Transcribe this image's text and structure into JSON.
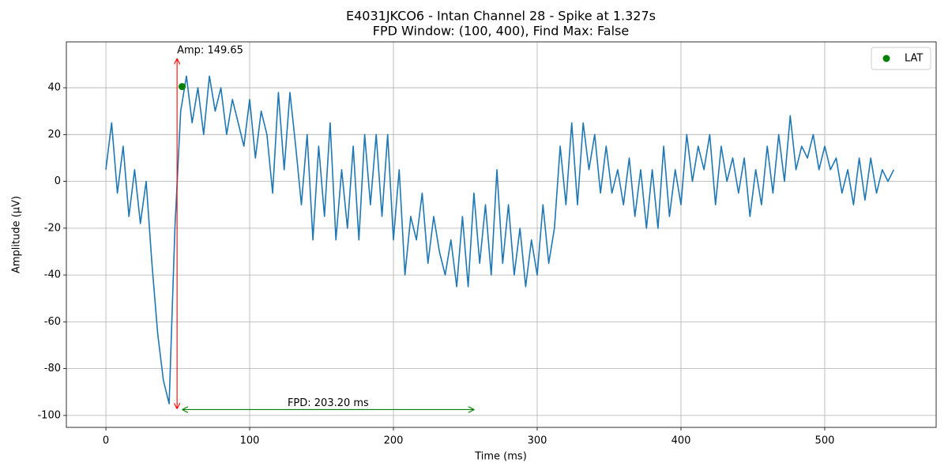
{
  "chart_data": {
    "type": "line",
    "title": "E4031JKCO6 - Intan Channel 28 - Spike at 1.327s",
    "subtitle": "FPD Window: (100, 400), Find Max: False",
    "x_label": "Time (ms)",
    "y_label": "Amplitude (µV)",
    "x": [
      0,
      4,
      8,
      12,
      16,
      20,
      24,
      28,
      32,
      36,
      40,
      44,
      48,
      52,
      56,
      60,
      64,
      68,
      72,
      76,
      80,
      84,
      88,
      92,
      96,
      100,
      104,
      108,
      112,
      116,
      120,
      124,
      128,
      132,
      136,
      140,
      144,
      148,
      152,
      156,
      160,
      164,
      168,
      172,
      176,
      180,
      184,
      188,
      192,
      196,
      200,
      204,
      208,
      212,
      216,
      220,
      224,
      228,
      232,
      236,
      240,
      244,
      248,
      252,
      256,
      260,
      264,
      268,
      272,
      276,
      280,
      284,
      288,
      292,
      296,
      300,
      304,
      308,
      312,
      316,
      320,
      324,
      328,
      332,
      336,
      340,
      344,
      348,
      352,
      356,
      360,
      364,
      368,
      372,
      376,
      380,
      384,
      388,
      392,
      396,
      400,
      404,
      408,
      412,
      416,
      420,
      424,
      428,
      432,
      436,
      440,
      444,
      448,
      452,
      456,
      460,
      464,
      468,
      472,
      476,
      480,
      484,
      488,
      492,
      496,
      500,
      504,
      508,
      512,
      516,
      520,
      524,
      528,
      532,
      536,
      540,
      544,
      548
    ],
    "series": [
      {
        "color": "#1f77b4",
        "values": [
          5,
          25,
          -5,
          15,
          -15,
          5,
          -18,
          0,
          -35,
          -65,
          -85,
          -95,
          -20,
          30,
          45,
          25,
          40,
          20,
          45,
          30,
          40,
          20,
          35,
          25,
          15,
          35,
          10,
          30,
          20,
          -5,
          38,
          5,
          38,
          15,
          -10,
          20,
          -25,
          15,
          -15,
          25,
          -25,
          5,
          -20,
          15,
          -25,
          20,
          -10,
          20,
          -15,
          20,
          -25,
          5,
          -40,
          -15,
          -25,
          -5,
          -35,
          -15,
          -30,
          -40,
          -25,
          -45,
          -15,
          -45,
          -5,
          -35,
          -10,
          -40,
          5,
          -35,
          -10,
          -40,
          -20,
          -45,
          -25,
          -40,
          -10,
          -35,
          -20,
          15,
          -10,
          25,
          -10,
          25,
          5,
          20,
          -5,
          15,
          -5,
          5,
          -10,
          10,
          -15,
          5,
          -20,
          5,
          -20,
          15,
          -15,
          5,
          -10,
          20,
          0,
          15,
          5,
          20,
          -10,
          15,
          0,
          10,
          -5,
          10,
          -15,
          5,
          -10,
          15,
          -5,
          20,
          0,
          28,
          5,
          15,
          10,
          20,
          5,
          15,
          5,
          10,
          -5,
          5,
          -10,
          10,
          -8,
          10,
          -5,
          5,
          0,
          5
        ]
      }
    ],
    "lat": {
      "name": "LAT",
      "color": "green",
      "x": 53,
      "y": 40.5
    },
    "annotations": [
      {
        "text": "Amp: 149.65",
        "color": "red",
        "x": 49.5,
        "y_start": 52.5,
        "y_end": -97.2
      },
      {
        "text": "FPD: 203.20 ms",
        "color": "green",
        "y": -97.5,
        "x_start": 53,
        "x_end": 256.2
      }
    ],
    "xlim": [
      -27.5,
      577.5
    ],
    "ylim": [
      -105.1,
      59.6
    ],
    "xticks": [
      0,
      100,
      200,
      300,
      400,
      500
    ],
    "yticks": [
      -100,
      -80,
      -60,
      -40,
      -20,
      0,
      20,
      40
    ],
    "grid": true,
    "legend": "upper right"
  }
}
